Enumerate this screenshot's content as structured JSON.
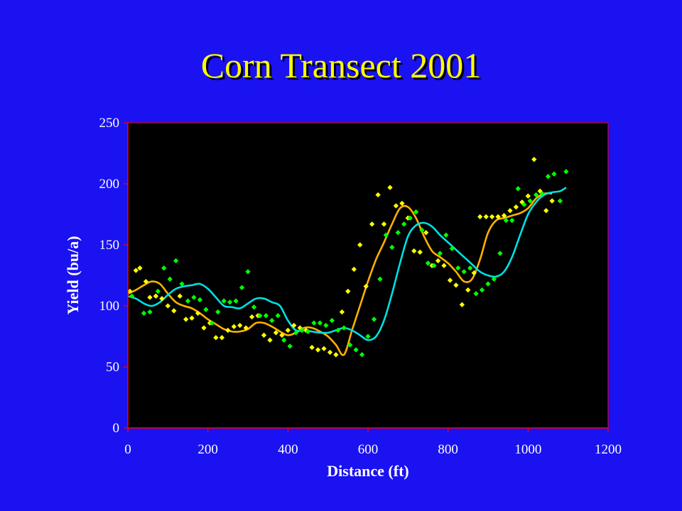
{
  "slide": {
    "title": "Corn Transect 2001"
  },
  "chart_data": {
    "type": "scatter",
    "title": "Corn Transect 2001",
    "xlabel": "Distance (ft)",
    "ylabel": "Yield (bu/a)",
    "xlim": [
      0,
      1200
    ],
    "ylim": [
      0,
      250
    ],
    "xticks": [
      0,
      200,
      400,
      600,
      800,
      1000,
      1200
    ],
    "yticks": [
      0,
      50,
      100,
      150,
      200,
      250
    ],
    "grid": false,
    "legend": "none",
    "colors": {
      "background": "#1a12f0",
      "plot_area": "#000000",
      "axis": "#ff0000",
      "title": "#ffff00",
      "text": "#ffffff"
    },
    "series": [
      {
        "kind": "points",
        "color": "#ffff00",
        "x": [
          5,
          20,
          30,
          45,
          55,
          70,
          85,
          100,
          115,
          130,
          145,
          160,
          175,
          190,
          205,
          220,
          235,
          250,
          265,
          280,
          295,
          310,
          325,
          340,
          355,
          370,
          385,
          400,
          415,
          430,
          445,
          460,
          475,
          490,
          505,
          520,
          535,
          550,
          565,
          580,
          595,
          610,
          625,
          640,
          655,
          670,
          685,
          700,
          715,
          730,
          745,
          760,
          775,
          790,
          805,
          820,
          835,
          850,
          865,
          880,
          895,
          910,
          925,
          940,
          955,
          970,
          985,
          1000,
          1015,
          1030,
          1045,
          1060
        ],
        "y": [
          112,
          129,
          131,
          120,
          107,
          108,
          106,
          100,
          96,
          108,
          89,
          90,
          94,
          82,
          86,
          74,
          74,
          80,
          83,
          84,
          82,
          91,
          92,
          76,
          72,
          78,
          76,
          80,
          84,
          82,
          80,
          66,
          64,
          65,
          62,
          60,
          95,
          112,
          130,
          150,
          116,
          167,
          191,
          167,
          197,
          182,
          184,
          172,
          145,
          144,
          160,
          133,
          137,
          133,
          121,
          117,
          101,
          113,
          127,
          173,
          173,
          173,
          173,
          174,
          178,
          181,
          185,
          190,
          220,
          194,
          178,
          186
        ]
      },
      {
        "kind": "points",
        "color": "#00ff00",
        "x": [
          10,
          40,
          55,
          75,
          90,
          105,
          120,
          135,
          150,
          165,
          180,
          195,
          210,
          225,
          240,
          255,
          270,
          285,
          300,
          315,
          330,
          345,
          360,
          375,
          390,
          405,
          420,
          435,
          450,
          465,
          480,
          495,
          510,
          525,
          540,
          555,
          570,
          585,
          600,
          615,
          630,
          645,
          660,
          675,
          690,
          705,
          720,
          735,
          750,
          765,
          780,
          795,
          810,
          825,
          840,
          855,
          870,
          885,
          900,
          915,
          930,
          945,
          960,
          975,
          990,
          1005,
          1020,
          1035,
          1050,
          1065,
          1080,
          1095
        ],
        "y": [
          108,
          94,
          95,
          112,
          131,
          122,
          137,
          118,
          104,
          107,
          105,
          97,
          86,
          95,
          104,
          103,
          104,
          115,
          128,
          99,
          92,
          92,
          88,
          92,
          72,
          67,
          78,
          80,
          79,
          86,
          86,
          84,
          88,
          80,
          82,
          68,
          64,
          60,
          75,
          89,
          122,
          158,
          148,
          160,
          167,
          172,
          177,
          162,
          135,
          133,
          143,
          158,
          147,
          131,
          128,
          131,
          110,
          113,
          118,
          122,
          143,
          170,
          170,
          196,
          183,
          186,
          191,
          192,
          206,
          208,
          186,
          210
        ]
      },
      {
        "kind": "trend",
        "color": "#ffb000",
        "x": [
          0,
          20,
          40,
          60,
          80,
          100,
          120,
          140,
          160,
          180,
          200,
          220,
          240,
          260,
          280,
          300,
          320,
          340,
          360,
          380,
          400,
          420,
          440,
          460,
          480,
          500,
          520,
          540,
          560,
          580,
          600,
          620,
          640,
          660,
          680,
          700,
          720,
          740,
          760,
          780,
          800,
          820,
          840,
          860,
          880,
          900,
          920,
          940,
          960,
          980,
          1000,
          1020,
          1040,
          1060
        ],
        "y": [
          110,
          113,
          117,
          120,
          118,
          110,
          103,
          100,
          98,
          94,
          89,
          85,
          81,
          79,
          79,
          81,
          86,
          86,
          83,
          79,
          76,
          78,
          82,
          82,
          79,
          75,
          68,
          60,
          80,
          100,
          120,
          138,
          152,
          167,
          180,
          181,
          172,
          157,
          145,
          140,
          135,
          128,
          120,
          122,
          138,
          160,
          170,
          172,
          174,
          176,
          180,
          188,
          192,
          192
        ]
      },
      {
        "kind": "trend",
        "color": "#00e0e0",
        "x": [
          0,
          20,
          40,
          60,
          80,
          100,
          120,
          140,
          160,
          180,
          200,
          220,
          240,
          260,
          280,
          300,
          320,
          340,
          360,
          380,
          400,
          420,
          440,
          460,
          480,
          500,
          520,
          540,
          560,
          580,
          600,
          620,
          640,
          660,
          680,
          700,
          720,
          740,
          760,
          780,
          800,
          820,
          840,
          860,
          880,
          900,
          920,
          940,
          960,
          980,
          1000,
          1020,
          1040,
          1060,
          1080,
          1095
        ],
        "y": [
          108,
          106,
          102,
          100,
          103,
          109,
          114,
          116,
          117,
          118,
          114,
          107,
          100,
          99,
          98,
          102,
          106,
          106,
          103,
          100,
          88,
          80,
          80,
          79,
          78,
          78,
          80,
          82,
          80,
          76,
          72,
          75,
          88,
          110,
          135,
          157,
          166,
          168,
          165,
          158,
          152,
          146,
          140,
          134,
          128,
          125,
          124,
          128,
          140,
          158,
          175,
          185,
          191,
          193,
          194,
          197
        ]
      }
    ]
  }
}
